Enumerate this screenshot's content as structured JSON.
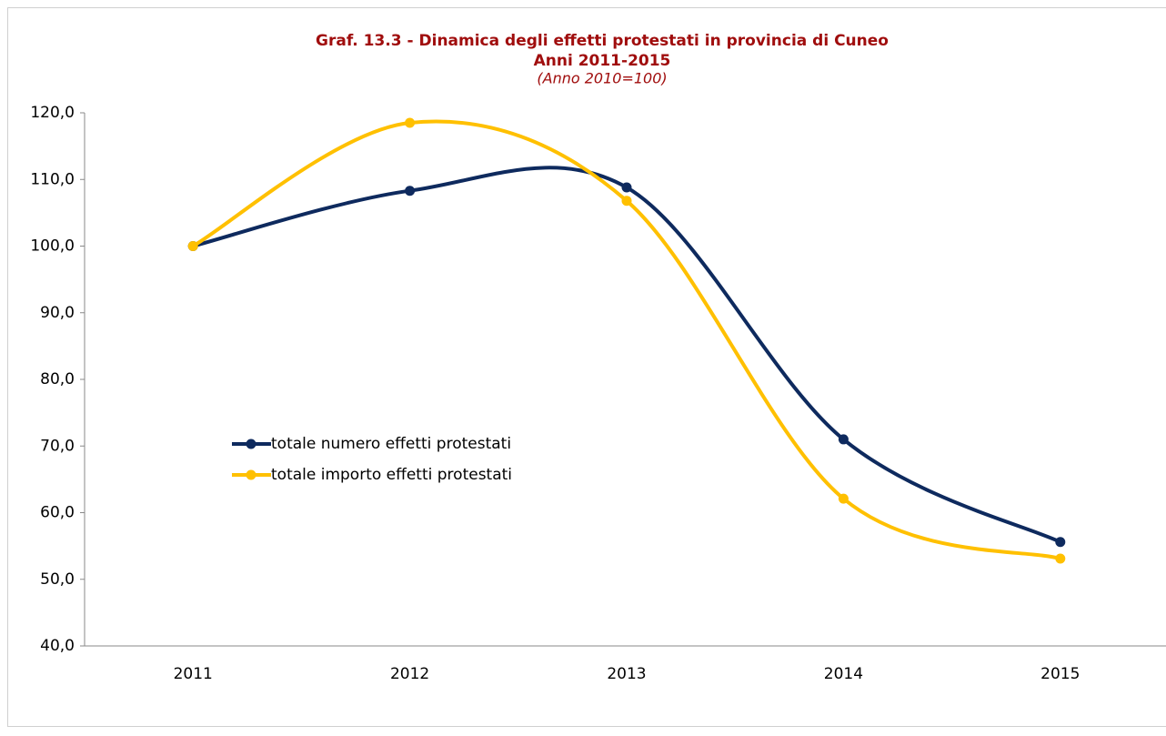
{
  "chart_data": {
    "type": "line",
    "title": "Graf. 13.3 - Dinamica degli effetti protestati in provincia di Cuneo",
    "title2": "Anni 2011-2015",
    "subtitle": "(Anno 2010=100)",
    "categories": [
      "2011",
      "2012",
      "2013",
      "2014",
      "2015"
    ],
    "series": [
      {
        "name": "totale numero effetti protestati",
        "color": "#0e2a5e",
        "values": [
          100.0,
          108.3,
          108.8,
          71.0,
          55.6
        ]
      },
      {
        "name": "totale importo effetti protestati",
        "color": "#ffc000",
        "values": [
          100.0,
          118.5,
          106.8,
          62.1,
          53.1
        ]
      }
    ],
    "ylim": [
      40,
      120
    ],
    "yticks": [
      {
        "value": 40,
        "label": "40,0"
      },
      {
        "value": 50,
        "label": "50,0"
      },
      {
        "value": 60,
        "label": "60,0"
      },
      {
        "value": 70,
        "label": "70,0"
      },
      {
        "value": 80,
        "label": "80,0"
      },
      {
        "value": 90,
        "label": "90,0"
      },
      {
        "value": 100,
        "label": "100,0"
      },
      {
        "value": 110,
        "label": "110,0"
      },
      {
        "value": 120,
        "label": "120,0"
      }
    ],
    "smooth": true,
    "grid": false,
    "legend": "left"
  }
}
